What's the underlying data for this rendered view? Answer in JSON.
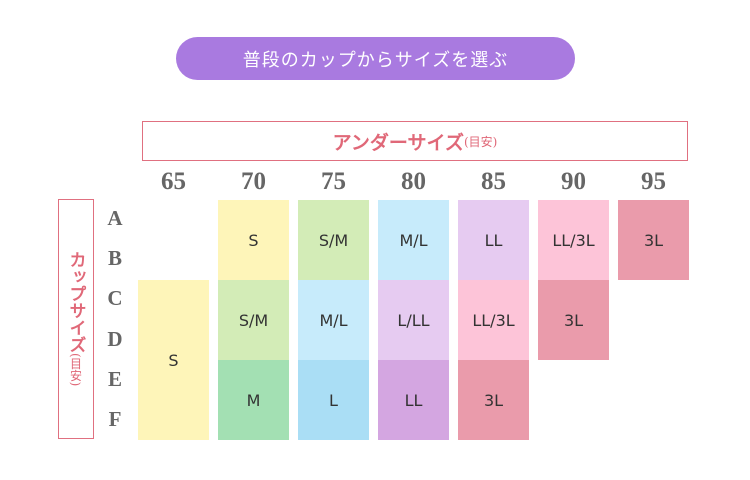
{
  "title": "普段のカップからサイズを選ぶ",
  "chart_data": {
    "type": "table",
    "column_header": {
      "label": "アンダーサイズ",
      "note": "(目安)"
    },
    "row_header": {
      "label": "カップサイズ",
      "note": "(目安)"
    },
    "columns": [
      "65",
      "70",
      "75",
      "80",
      "85",
      "90",
      "95"
    ],
    "rows": [
      "A",
      "B",
      "C",
      "D",
      "E",
      "F"
    ],
    "colors": {
      "yellow": "#fef5b9",
      "light_green": "#d3ecb7",
      "green": "#a3e0b3",
      "light_blue": "#c7ebfb",
      "blue": "#aadef5",
      "lavender": "#e6cbf1",
      "purple": "#d4a6e1",
      "pink": "#fdc4d8",
      "rose": "#ea9bab"
    },
    "cells": [
      {
        "under": "65",
        "cups": "C-F",
        "size": "S",
        "color": "yellow"
      },
      {
        "under": "70",
        "cups": "A-B",
        "size": "S",
        "color": "yellow"
      },
      {
        "under": "70",
        "cups": "C-D",
        "size": "S/M",
        "color": "light_green"
      },
      {
        "under": "70",
        "cups": "E-F",
        "size": "M",
        "color": "green"
      },
      {
        "under": "75",
        "cups": "A-B",
        "size": "S/M",
        "color": "light_green"
      },
      {
        "under": "75",
        "cups": "C-D",
        "size": "M/L",
        "color": "light_blue"
      },
      {
        "under": "75",
        "cups": "E-F",
        "size": "L",
        "color": "blue"
      },
      {
        "under": "80",
        "cups": "A-B",
        "size": "M/L",
        "color": "light_blue"
      },
      {
        "under": "80",
        "cups": "C-D",
        "size": "L/LL",
        "color": "lavender"
      },
      {
        "under": "80",
        "cups": "E-F",
        "size": "LL",
        "color": "purple"
      },
      {
        "under": "85",
        "cups": "A-B",
        "size": "LL",
        "color": "lavender"
      },
      {
        "under": "85",
        "cups": "C-D",
        "size": "LL/3L",
        "color": "pink"
      },
      {
        "under": "85",
        "cups": "E-F",
        "size": "3L",
        "color": "rose"
      },
      {
        "under": "90",
        "cups": "A-B",
        "size": "LL/3L",
        "color": "pink"
      },
      {
        "under": "90",
        "cups": "C-D",
        "size": "3L",
        "color": "rose"
      },
      {
        "under": "95",
        "cups": "A-B",
        "size": "3L",
        "color": "rose"
      }
    ]
  }
}
